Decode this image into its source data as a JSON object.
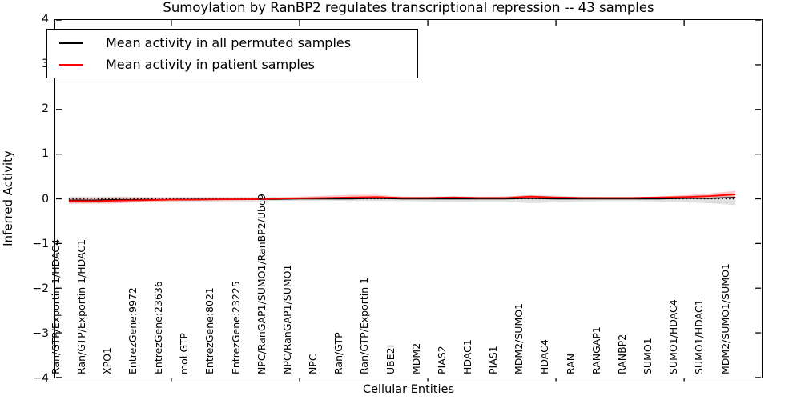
{
  "title": "Sumoylation by RanBP2 regulates transcriptional repression -- 43 samples",
  "axes": {
    "ylabel": "Inferred Activity",
    "xlabel": "Cellular Entities"
  },
  "legend": {
    "items": [
      {
        "label": "Mean activity in all permuted samples",
        "color": "#000000"
      },
      {
        "label": "Mean activity in patient samples",
        "color": "#ff0000"
      }
    ]
  },
  "chart_data": {
    "type": "line",
    "title": "Sumoylation by RanBP2 regulates transcriptional repression -- 43 samples",
    "xlabel": "Cellular Entities",
    "ylabel": "Inferred Activity",
    "ylim": [
      -4,
      4
    ],
    "yticks": [
      -4,
      -3,
      -2,
      -1,
      0,
      1,
      2,
      3,
      4
    ],
    "x_major_tick_indices": [
      4,
      9,
      14,
      19,
      24
    ],
    "zero_line": true,
    "legend_position": "upper left",
    "categories": [
      "Ran/GTP/Exportin 1/HDAC4",
      "Ran/GTP/Exportin 1/HDAC1",
      "XPO1",
      "EntrezGene:9972",
      "EntrezGene:23636",
      "mol:GTP",
      "EntrezGene:8021",
      "EntrezGene:23225",
      "NPC/RanGAP1/SUMO1/RanBP2/Ubc9",
      "NPC/RanGAP1/SUMO1",
      "NPC",
      "Ran/GTP",
      "Ran/GTP/Exportin 1",
      "UBE2I",
      "MDM2",
      "PIAS2",
      "HDAC1",
      "PIAS1",
      "MDM2/SUMO1",
      "HDAC4",
      "RAN",
      "RANGAP1",
      "RANBP2",
      "SUMO1",
      "SUMO1/HDAC4",
      "SUMO1/HDAC1",
      "MDM2/SUMO1/SUMO1"
    ],
    "series": [
      {
        "name": "Mean activity in all permuted samples",
        "color": "#000000",
        "width": 1.5,
        "values": [
          -0.03,
          -0.03,
          -0.02,
          -0.02,
          -0.02,
          -0.01,
          -0.01,
          -0.01,
          -0.01,
          0,
          0,
          0,
          0.01,
          0,
          0,
          0,
          0,
          0,
          0.01,
          0,
          0,
          0,
          0,
          0,
          0.01,
          0.01,
          0.03
        ]
      },
      {
        "name": "Mean activity in patient samples",
        "color": "#ff0000",
        "width": 1.8,
        "values": [
          -0.05,
          -0.05,
          -0.04,
          -0.03,
          -0.02,
          -0.02,
          -0.01,
          -0.01,
          0,
          0.01,
          0.02,
          0.03,
          0.04,
          0.02,
          0.02,
          0.03,
          0.02,
          0.02,
          0.05,
          0.03,
          0.02,
          0.02,
          0.02,
          0.03,
          0.04,
          0.06,
          0.1
        ]
      }
    ],
    "bands": [
      {
        "name": "permuted-samples-range",
        "color": "#c8c8c8",
        "opacity": 0.55,
        "upper": [
          0.05,
          0.05,
          0.05,
          0.04,
          0.04,
          0.04,
          0.04,
          0.04,
          0.04,
          0.04,
          0.04,
          0.04,
          0.05,
          0.04,
          0.05,
          0.06,
          0.05,
          0.05,
          0.09,
          0.07,
          0.05,
          0.04,
          0.04,
          0.05,
          0.07,
          0.09,
          0.12
        ],
        "lower": [
          -0.1,
          -0.1,
          -0.09,
          -0.08,
          -0.07,
          -0.06,
          -0.06,
          -0.06,
          -0.05,
          -0.05,
          -0.04,
          -0.05,
          -0.05,
          -0.05,
          -0.06,
          -0.07,
          -0.06,
          -0.06,
          -0.1,
          -0.08,
          -0.06,
          -0.05,
          -0.05,
          -0.06,
          -0.08,
          -0.1,
          -0.14
        ]
      },
      {
        "name": "patient-samples-range",
        "color": "#ff8888",
        "opacity": 0.45,
        "upper": [
          0.01,
          0.01,
          0.04,
          0.02,
          0.01,
          0.01,
          0.01,
          0.01,
          0.02,
          0.05,
          0.07,
          0.09,
          0.09,
          0.05,
          0.04,
          0.05,
          0.04,
          0.05,
          0.08,
          0.05,
          0.04,
          0.04,
          0.04,
          0.05,
          0.08,
          0.12,
          0.18
        ],
        "lower": [
          -0.11,
          -0.11,
          -0.1,
          -0.07,
          -0.05,
          -0.04,
          -0.04,
          -0.03,
          -0.02,
          -0.01,
          0,
          0,
          0,
          0,
          0,
          0,
          0,
          0,
          0.01,
          0,
          0,
          0,
          0,
          0.01,
          0.01,
          0.02,
          0.05
        ]
      }
    ]
  }
}
